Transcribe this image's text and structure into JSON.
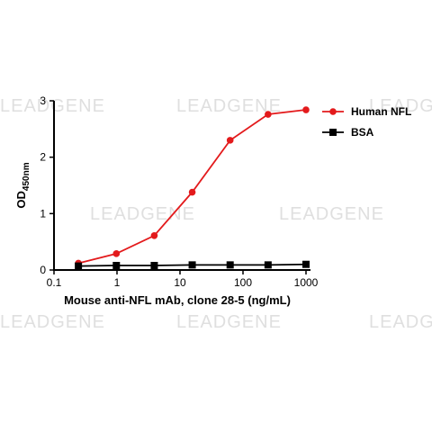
{
  "watermark": {
    "text": "LEADGENE"
  },
  "chart_data": {
    "type": "line",
    "xscale": "log",
    "xlim": [
      0.1,
      1000
    ],
    "ylim": [
      0,
      3
    ],
    "xticks": [
      0.1,
      1,
      10,
      100,
      1000
    ],
    "xtick_labels": [
      "0.1",
      "1",
      "10",
      "100",
      "1000"
    ],
    "yticks": [
      0,
      1,
      2,
      3
    ],
    "ytick_labels": [
      "0",
      "1",
      "2",
      "3"
    ],
    "xlabel": "Mouse anti-NFL mAb, clone 28-5 (ng/mL)",
    "ylabel_main": "OD",
    "ylabel_sub": "450nm",
    "legend_position": "top-right",
    "grid": false,
    "x": [
      0.244,
      0.977,
      3.906,
      15.625,
      62.5,
      250,
      1000
    ],
    "series": [
      {
        "name": "Human NFL",
        "color": "#e31a1c",
        "marker": "circle",
        "values": [
          0.12,
          0.29,
          0.61,
          1.38,
          2.3,
          2.76,
          2.84
        ]
      },
      {
        "name": "BSA",
        "color": "#000000",
        "marker": "square",
        "values": [
          0.07,
          0.08,
          0.08,
          0.09,
          0.09,
          0.09,
          0.1
        ]
      }
    ]
  }
}
